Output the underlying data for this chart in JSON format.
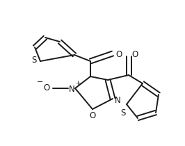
{
  "line_color": "#1a1a1a",
  "bg_color": "#ffffff",
  "lw": 1.4,
  "figsize": [
    2.66,
    2.1
  ],
  "dpi": 100,
  "xlim": [
    0,
    266
  ],
  "ylim": [
    0,
    210
  ]
}
